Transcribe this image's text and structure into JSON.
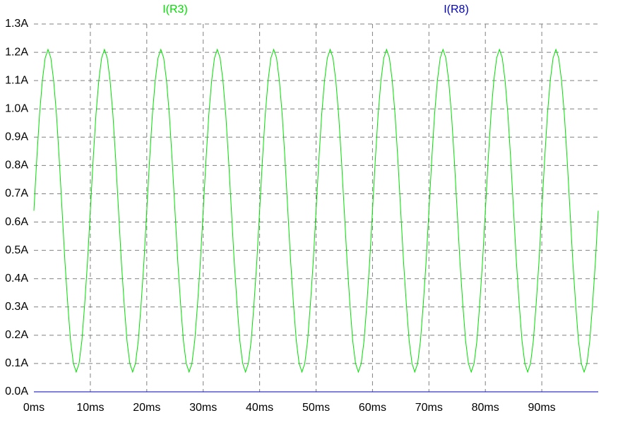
{
  "chart_data": {
    "type": "line",
    "x": [
      0,
      0.5,
      1,
      1.5,
      2,
      2.5,
      3,
      3.5,
      4,
      4.5,
      5,
      5.5,
      6,
      6.5,
      7,
      7.5,
      8,
      8.5,
      9,
      9.5,
      10,
      10.5,
      11,
      11.5,
      12,
      12.5,
      13,
      13.5,
      14,
      14.5,
      15,
      15.5,
      16,
      16.5,
      17,
      17.5,
      18,
      18.5,
      19,
      19.5,
      20,
      20.5,
      21,
      21.5,
      22,
      22.5,
      23,
      23.5,
      24,
      24.5,
      25,
      25.5,
      26,
      26.5,
      27,
      27.5,
      28,
      28.5,
      29,
      29.5,
      30,
      30.5,
      31,
      31.5,
      32,
      32.5,
      33,
      33.5,
      34,
      34.5,
      35,
      35.5,
      36,
      36.5,
      37,
      37.5,
      38,
      38.5,
      39,
      39.5,
      40,
      40.5,
      41,
      41.5,
      42,
      42.5,
      43,
      43.5,
      44,
      44.5,
      45,
      45.5,
      46,
      46.5,
      47,
      47.5,
      48,
      48.5,
      49,
      49.5,
      50,
      50.5,
      51,
      51.5,
      52,
      52.5,
      53,
      53.5,
      54,
      54.5,
      55,
      55.5,
      56,
      56.5,
      57,
      57.5,
      58,
      58.5,
      59,
      59.5,
      60,
      60.5,
      61,
      61.5,
      62,
      62.5,
      63,
      63.5,
      64,
      64.5,
      65,
      65.5,
      66,
      66.5,
      67,
      67.5,
      68,
      68.5,
      69,
      69.5,
      70,
      70.5,
      71,
      71.5,
      72,
      72.5,
      73,
      73.5,
      74,
      74.5,
      75,
      75.5,
      76,
      76.5,
      77,
      77.5,
      78,
      78.5,
      79,
      79.5,
      80,
      80.5,
      81,
      81.5,
      82,
      82.5,
      83,
      83.5,
      84,
      84.5,
      85,
      85.5,
      86,
      86.5,
      87,
      87.5,
      88,
      88.5,
      89,
      89.5,
      90,
      90.5,
      91,
      91.5,
      92,
      92.5,
      93,
      93.5,
      94,
      94.5,
      95,
      95.5,
      96,
      96.5,
      97,
      97.5,
      98,
      98.5,
      99,
      99.5,
      100
    ],
    "series": [
      {
        "name": "I(R3)",
        "color": "#00e000",
        "values": [
          0.64,
          0.82,
          0.98,
          1.1,
          1.18,
          1.21,
          1.18,
          1.1,
          0.98,
          0.82,
          0.64,
          0.46,
          0.31,
          0.18,
          0.1,
          0.07,
          0.1,
          0.18,
          0.31,
          0.46,
          0.64,
          0.82,
          0.98,
          1.1,
          1.18,
          1.21,
          1.18,
          1.1,
          0.98,
          0.82,
          0.64,
          0.46,
          0.31,
          0.18,
          0.1,
          0.07,
          0.1,
          0.18,
          0.31,
          0.46,
          0.64,
          0.82,
          0.98,
          1.1,
          1.18,
          1.21,
          1.18,
          1.1,
          0.98,
          0.82,
          0.64,
          0.46,
          0.31,
          0.18,
          0.1,
          0.07,
          0.1,
          0.18,
          0.31,
          0.46,
          0.64,
          0.82,
          0.98,
          1.1,
          1.18,
          1.21,
          1.18,
          1.1,
          0.98,
          0.82,
          0.64,
          0.46,
          0.31,
          0.18,
          0.1,
          0.07,
          0.1,
          0.18,
          0.31,
          0.46,
          0.64,
          0.82,
          0.98,
          1.1,
          1.18,
          1.21,
          1.18,
          1.1,
          0.98,
          0.82,
          0.64,
          0.46,
          0.31,
          0.18,
          0.1,
          0.07,
          0.1,
          0.18,
          0.31,
          0.46,
          0.64,
          0.82,
          0.98,
          1.1,
          1.18,
          1.21,
          1.18,
          1.1,
          0.98,
          0.82,
          0.64,
          0.46,
          0.31,
          0.18,
          0.1,
          0.07,
          0.1,
          0.18,
          0.31,
          0.46,
          0.64,
          0.82,
          0.98,
          1.1,
          1.18,
          1.21,
          1.18,
          1.1,
          0.98,
          0.82,
          0.64,
          0.46,
          0.31,
          0.18,
          0.1,
          0.07,
          0.1,
          0.18,
          0.31,
          0.46,
          0.64,
          0.82,
          0.98,
          1.1,
          1.18,
          1.21,
          1.18,
          1.1,
          0.98,
          0.82,
          0.64,
          0.46,
          0.31,
          0.18,
          0.1,
          0.07,
          0.1,
          0.18,
          0.31,
          0.46,
          0.64,
          0.82,
          0.98,
          1.1,
          1.18,
          1.21,
          1.18,
          1.1,
          0.98,
          0.82,
          0.64,
          0.46,
          0.31,
          0.18,
          0.1,
          0.07,
          0.1,
          0.18,
          0.31,
          0.46,
          0.64,
          0.82,
          0.98,
          1.1,
          1.18,
          1.21,
          1.18,
          1.1,
          0.98,
          0.82,
          0.64,
          0.46,
          0.31,
          0.18,
          0.1,
          0.07,
          0.1,
          0.18,
          0.31,
          0.46,
          0.64
        ]
      },
      {
        "name": "I(R8)",
        "color": "#0000c0",
        "x": [
          0,
          100
        ],
        "values": [
          0,
          0
        ]
      }
    ],
    "xlim": [
      0,
      100
    ],
    "xticks": [
      {
        "value": 0,
        "label": "0ms"
      },
      {
        "value": 10,
        "label": "10ms"
      },
      {
        "value": 20,
        "label": "20ms"
      },
      {
        "value": 30,
        "label": "30ms"
      },
      {
        "value": 40,
        "label": "40ms"
      },
      {
        "value": 50,
        "label": "50ms"
      },
      {
        "value": 60,
        "label": "60ms"
      },
      {
        "value": 70,
        "label": "70ms"
      },
      {
        "value": 80,
        "label": "80ms"
      },
      {
        "value": 90,
        "label": "90ms"
      }
    ],
    "ylim": [
      0,
      1.3
    ],
    "yticks": [
      {
        "value": 0,
        "label": "0.0A"
      },
      {
        "value": 0.1,
        "label": "0.1A"
      },
      {
        "value": 0.2,
        "label": "0.2A"
      },
      {
        "value": 0.3,
        "label": "0.3A"
      },
      {
        "value": 0.4,
        "label": "0.4A"
      },
      {
        "value": 0.5,
        "label": "0.5A"
      },
      {
        "value": 0.6,
        "label": "0.6A"
      },
      {
        "value": 0.7,
        "label": "0.7A"
      },
      {
        "value": 0.8,
        "label": "0.8A"
      },
      {
        "value": 0.9,
        "label": "0.9A"
      },
      {
        "value": 1.0,
        "label": "1.0A"
      },
      {
        "value": 1.1,
        "label": "1.1A"
      },
      {
        "value": 1.2,
        "label": "1.2A"
      },
      {
        "value": 1.3,
        "label": "1.3A"
      }
    ],
    "grid": true
  }
}
